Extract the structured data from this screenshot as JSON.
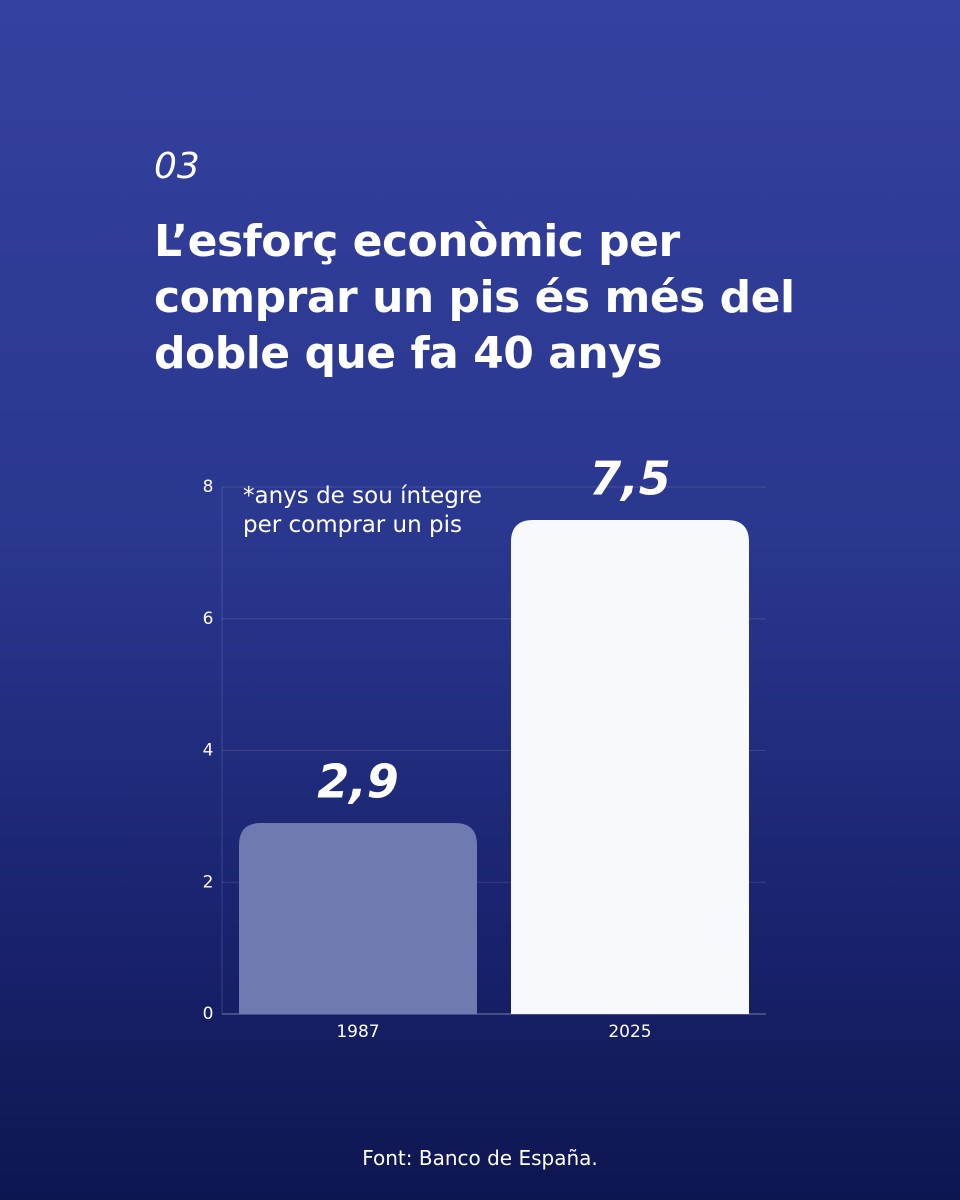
{
  "chart_data": {
    "type": "bar",
    "kicker": "03",
    "title": "L’esforç econòmic per comprar un pis és més del doble que fa 40 anys",
    "annotation": "*anys de sou íntegre per comprar un pis",
    "source": "Font: Banco de España.",
    "categories": [
      "1987",
      "2025"
    ],
    "values": [
      2.9,
      7.5
    ],
    "value_labels": [
      "2,9",
      "7,5"
    ],
    "colors": [
      "#6f7bb0",
      "#f8f9fc"
    ],
    "ylim": [
      0,
      8
    ],
    "yticks": [
      0,
      2,
      4,
      6,
      8
    ],
    "grid": true
  }
}
